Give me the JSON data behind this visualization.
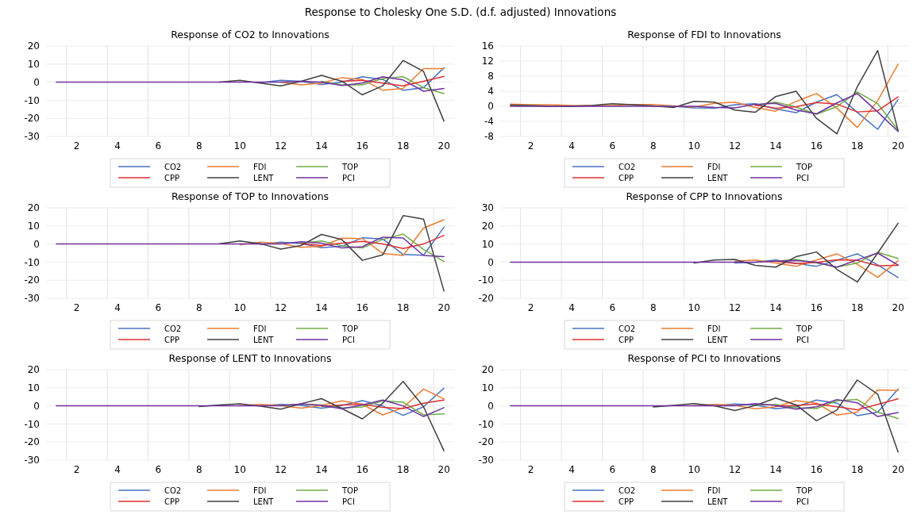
{
  "chart_data": [
    {
      "type": "line",
      "title": "Response of CO2 to Innovations",
      "annotations": [
        "Response to Cholesky One S.D. (d.f. adjusted) Innovations"
      ],
      "categories": [
        null,
        "2",
        null,
        "4",
        null,
        "6",
        null,
        "8",
        null,
        "10",
        null,
        "12",
        null,
        "14",
        null,
        "16",
        null,
        "18",
        null,
        "20"
      ],
      "ylim": [
        -30,
        20
      ],
      "yticks": [
        -30,
        -20,
        -10,
        0,
        10,
        20
      ],
      "grid": true,
      "legend": "bottom",
      "series": [
        {
          "name": "CO2",
          "color": "#4472c4",
          "values": [
            null,
            null,
            null,
            null,
            null,
            null,
            null,
            null,
            null,
            null,
            -0.3,
            1,
            0.5,
            -1.3,
            0,
            3,
            1.5,
            -4.5,
            -3,
            8
          ]
        },
        {
          "name": "FDI",
          "color": "#ed7d31",
          "values": [
            null,
            null,
            null,
            null,
            null,
            null,
            null,
            null,
            null,
            null,
            null,
            0,
            -1.5,
            -0.5,
            2.5,
            1.5,
            -4.5,
            -3.5,
            7.5,
            7.5
          ]
        },
        {
          "name": "TOP",
          "color": "#70ad47",
          "values": [
            null,
            null,
            null,
            null,
            null,
            null,
            null,
            null,
            null,
            null,
            null,
            null,
            null,
            0.5,
            -1.5,
            -1.5,
            2,
            3,
            -3,
            -6.3
          ]
        },
        {
          "name": "CPP",
          "color": "#e03030",
          "values": [
            null,
            null,
            null,
            null,
            null,
            null,
            null,
            null,
            null,
            null,
            null,
            null,
            null,
            null,
            0.5,
            1,
            -0.5,
            -2,
            0.5,
            3.2
          ]
        },
        {
          "name": "LENT",
          "color": "#404040",
          "values": [
            null,
            null,
            null,
            null,
            null,
            null,
            null,
            null,
            0,
            1,
            -0.5,
            -2,
            0.5,
            3.8,
            0.5,
            -7,
            -2,
            12,
            6,
            -21.5
          ]
        },
        {
          "name": "PCI",
          "color": "#7030a0",
          "values": [
            0,
            0,
            0,
            0,
            0,
            0,
            0,
            0,
            0,
            0,
            0,
            0,
            0.5,
            0,
            -1.8,
            -0.5,
            3,
            1.2,
            -5,
            -3.5
          ]
        }
      ]
    },
    {
      "type": "line",
      "title": "Response of FDI to Innovations",
      "categories": [
        null,
        "2",
        null,
        "4",
        null,
        "6",
        null,
        "8",
        null,
        "10",
        null,
        "12",
        null,
        "14",
        null,
        "16",
        null,
        "18",
        null,
        "20"
      ],
      "ylim": [
        -8,
        16
      ],
      "yticks": [
        -8,
        -4,
        0,
        4,
        8,
        12,
        16
      ],
      "grid": true,
      "legend": "bottom",
      "series": [
        {
          "name": "CO2",
          "color": "#4472c4",
          "values": [
            null,
            null,
            null,
            null,
            null,
            null,
            null,
            null,
            0,
            -0.4,
            -0.5,
            0.4,
            0.7,
            -0.7,
            -1.7,
            1.1,
            3.1,
            -1.6,
            -6.1,
            1.8
          ]
        },
        {
          "name": "FDI",
          "color": "#ed7d31",
          "values": [
            0.6,
            0.4,
            0.4,
            0.2,
            0.2,
            0.2,
            0.5,
            0.5,
            0.1,
            -0.2,
            0.8,
            1.1,
            -0.3,
            -1.3,
            1.3,
            3.4,
            -0.5,
            -5.6,
            1.5,
            11.2
          ]
        },
        {
          "name": "TOP",
          "color": "#70ad47",
          "values": [
            null,
            null,
            null,
            null,
            null,
            null,
            null,
            null,
            null,
            null,
            null,
            null,
            0.3,
            1.1,
            -0.2,
            -2.1,
            -0.1,
            3.8,
            0.7,
            -6.3
          ]
        },
        {
          "name": "CPP",
          "color": "#e03030",
          "values": [
            null,
            null,
            null,
            null,
            null,
            null,
            null,
            null,
            null,
            null,
            null,
            null,
            0.3,
            -0.5,
            -0.1,
            1,
            0.6,
            -1.5,
            -1.2,
            2.5
          ]
        },
        {
          "name": "LENT",
          "color": "#404040",
          "values": [
            0.3,
            0.2,
            0,
            0,
            0.2,
            0.7,
            0.4,
            0.1,
            -0.3,
            1.3,
            1.1,
            -1,
            -1.6,
            2.6,
            4,
            -3.2,
            -7.3,
            5.2,
            14.8,
            -6.5
          ]
        },
        {
          "name": "PCI",
          "color": "#7030a0",
          "values": [
            0,
            0,
            0,
            0,
            0,
            0,
            0,
            0,
            0,
            0,
            -0.3,
            -0.4,
            0.5,
            0.8,
            -1,
            -2,
            0.9,
            3.4,
            -1.5,
            -6.7
          ]
        }
      ]
    },
    {
      "type": "line",
      "title": "Response of TOP to Innovations",
      "categories": [
        null,
        "2",
        null,
        "4",
        null,
        "6",
        null,
        "8",
        null,
        "10",
        null,
        "12",
        null,
        "14",
        null,
        "16",
        null,
        "18",
        null,
        "20"
      ],
      "ylim": [
        -30,
        20
      ],
      "yticks": [
        -30,
        -20,
        -10,
        0,
        10,
        20
      ],
      "grid": true,
      "legend": "bottom",
      "series": [
        {
          "name": "CO2",
          "color": "#4472c4",
          "values": [
            null,
            null,
            null,
            null,
            null,
            null,
            null,
            null,
            null,
            null,
            -0.3,
            1,
            0.3,
            -2,
            -1.2,
            3.4,
            2.8,
            -5.8,
            -6.2,
            9.3
          ]
        },
        {
          "name": "FDI",
          "color": "#ed7d31",
          "values": [
            null,
            null,
            null,
            null,
            null,
            null,
            null,
            null,
            null,
            -0.4,
            1,
            0.3,
            -1.8,
            -1.3,
            3.2,
            3,
            -5.2,
            -6.3,
            8.8,
            13.4
          ]
        },
        {
          "name": "TOP",
          "color": "#70ad47",
          "values": [
            null,
            null,
            null,
            null,
            null,
            null,
            null,
            null,
            null,
            null,
            null,
            null,
            0.5,
            1.7,
            -1,
            -2.2,
            2.5,
            5.5,
            -3,
            -9.7
          ]
        },
        {
          "name": "CPP",
          "color": "#e03030",
          "values": [
            null,
            null,
            null,
            null,
            null,
            null,
            null,
            null,
            null,
            null,
            null,
            null,
            0.3,
            -0.8,
            0.5,
            1.5,
            0,
            -2.5,
            0,
            4.8
          ]
        },
        {
          "name": "LENT",
          "color": "#404040",
          "values": [
            null,
            null,
            null,
            null,
            null,
            null,
            null,
            null,
            0.2,
            1.7,
            0.2,
            -2.8,
            -0.8,
            5.3,
            2.5,
            -9,
            -6,
            15.7,
            13.8,
            -26
          ]
        },
        {
          "name": "PCI",
          "color": "#7030a0",
          "values": [
            0,
            0,
            0,
            0,
            0,
            0,
            0,
            0,
            0,
            0,
            0,
            0,
            1.3,
            0.5,
            -2.2,
            -1.5,
            3.8,
            3.3,
            -6.3,
            -7
          ]
        }
      ]
    },
    {
      "type": "line",
      "title": "Response of CPP to Innovations",
      "categories": [
        null,
        "2",
        null,
        "4",
        null,
        "6",
        null,
        "8",
        null,
        "10",
        null,
        "12",
        null,
        "14",
        null,
        "16",
        null,
        "18",
        null,
        "20"
      ],
      "ylim": [
        -20,
        30
      ],
      "yticks": [
        -20,
        -10,
        0,
        10,
        20,
        30
      ],
      "grid": true,
      "legend": "bottom",
      "series": [
        {
          "name": "CO2",
          "color": "#4472c4",
          "values": [
            null,
            null,
            null,
            null,
            null,
            null,
            null,
            null,
            null,
            null,
            null,
            -0.5,
            0,
            1.2,
            -0.7,
            -2.3,
            1,
            4.6,
            -1.5,
            -8.5
          ]
        },
        {
          "name": "FDI",
          "color": "#ed7d31",
          "values": [
            null,
            null,
            null,
            null,
            null,
            null,
            null,
            null,
            null,
            null,
            null,
            0.5,
            1.2,
            -0.5,
            -2.3,
            1.2,
            4.6,
            -1.2,
            -8.4,
            0.8
          ]
        },
        {
          "name": "TOP",
          "color": "#70ad47",
          "values": [
            null,
            null,
            null,
            null,
            null,
            null,
            null,
            null,
            null,
            null,
            null,
            null,
            null,
            0.5,
            1.5,
            -0.5,
            -2.8,
            -0.5,
            5.4,
            2
          ]
        },
        {
          "name": "CPP",
          "color": "#e03030",
          "values": [
            null,
            null,
            null,
            null,
            null,
            null,
            null,
            null,
            null,
            null,
            null,
            null,
            null,
            0.5,
            -0.8,
            -0.2,
            1.3,
            1,
            -2,
            -1.8
          ]
        },
        {
          "name": "LENT",
          "color": "#404040",
          "values": [
            null,
            null,
            null,
            null,
            null,
            null,
            null,
            null,
            null,
            -0.5,
            1.2,
            1.5,
            -1.8,
            -2.8,
            3,
            5.6,
            -4,
            -11,
            5,
            21.5
          ]
        },
        {
          "name": "PCI",
          "color": "#7030a0",
          "values": [
            0,
            0,
            0,
            0,
            0,
            0,
            0,
            0,
            0,
            0,
            0,
            0,
            0,
            0.5,
            0.8,
            0,
            -2.8,
            1.2,
            5,
            -1.6
          ]
        }
      ]
    },
    {
      "type": "line",
      "title": "Response of LENT to Innovations",
      "categories": [
        null,
        "2",
        null,
        "4",
        null,
        "6",
        null,
        "8",
        null,
        "10",
        null,
        "12",
        null,
        "14",
        null,
        "16",
        null,
        "18",
        null,
        "20"
      ],
      "ylim": [
        -30,
        20
      ],
      "yticks": [
        -30,
        -20,
        -10,
        0,
        10,
        20
      ],
      "grid": true,
      "legend": "bottom",
      "series": [
        {
          "name": "CO2",
          "color": "#4472c4",
          "values": [
            null,
            null,
            null,
            null,
            null,
            null,
            null,
            null,
            null,
            null,
            0,
            0.8,
            0.3,
            -1.3,
            0.2,
            2.9,
            0,
            -5.3,
            -0.5,
            9.8
          ]
        },
        {
          "name": "FDI",
          "color": "#ed7d31",
          "values": [
            null,
            null,
            null,
            null,
            null,
            null,
            null,
            null,
            null,
            0,
            0.8,
            0.2,
            -1.3,
            0.3,
            2.8,
            0.8,
            -5,
            -1,
            9.3,
            3.8
          ]
        },
        {
          "name": "TOP",
          "color": "#70ad47",
          "values": [
            null,
            null,
            null,
            null,
            null,
            null,
            null,
            null,
            null,
            null,
            null,
            0,
            1,
            0.5,
            -1.2,
            -0.6,
            2.8,
            2,
            -5,
            -4.5
          ]
        },
        {
          "name": "CPP",
          "color": "#e03030",
          "values": [
            null,
            null,
            null,
            null,
            null,
            null,
            null,
            null,
            null,
            null,
            null,
            null,
            null,
            -0.3,
            0.5,
            0.9,
            -0.8,
            -1.5,
            1.5,
            3.2
          ]
        },
        {
          "name": "LENT",
          "color": "#404040",
          "values": [
            null,
            null,
            null,
            null,
            null,
            null,
            null,
            -0.4,
            0.5,
            1.1,
            -0.2,
            -1.8,
            1.2,
            4,
            -1.5,
            -7.2,
            1.5,
            13.5,
            -0.5,
            -24.8
          ]
        },
        {
          "name": "PCI",
          "color": "#7030a0",
          "values": [
            0,
            0,
            0,
            0,
            0,
            0,
            0,
            0,
            0,
            0,
            0,
            0,
            1,
            0.3,
            -1.6,
            0.5,
            3.2,
            0,
            -5.9,
            -1
          ]
        }
      ]
    },
    {
      "type": "line",
      "title": "Response of PCI to Innovations",
      "categories": [
        null,
        "2",
        null,
        "4",
        null,
        "6",
        null,
        "8",
        null,
        "10",
        null,
        "12",
        null,
        "14",
        null,
        "16",
        null,
        "18",
        null,
        "20"
      ],
      "ylim": [
        -30,
        20
      ],
      "yticks": [
        -30,
        -20,
        -10,
        0,
        10,
        20
      ],
      "grid": true,
      "legend": "bottom",
      "series": [
        {
          "name": "CO2",
          "color": "#4472c4",
          "values": [
            null,
            null,
            null,
            null,
            null,
            null,
            null,
            null,
            null,
            null,
            0,
            1,
            0.5,
            -1.6,
            -0.5,
            3.2,
            1.5,
            -5.4,
            -3.5,
            9.3
          ]
        },
        {
          "name": "FDI",
          "color": "#ed7d31",
          "values": [
            null,
            null,
            null,
            null,
            null,
            null,
            null,
            null,
            null,
            0,
            0.8,
            0.3,
            -1.6,
            -0.5,
            2.9,
            1.5,
            -5.1,
            -3.5,
            8.8,
            8.5
          ]
        },
        {
          "name": "TOP",
          "color": "#70ad47",
          "values": [
            null,
            null,
            null,
            null,
            null,
            null,
            null,
            null,
            null,
            null,
            null,
            null,
            0.5,
            0.7,
            -1,
            -1.5,
            2.8,
            3.5,
            -3.5,
            -7
          ]
        },
        {
          "name": "CPP",
          "color": "#e03030",
          "values": [
            null,
            null,
            null,
            null,
            null,
            null,
            null,
            null,
            null,
            null,
            null,
            null,
            null,
            -0.2,
            0.3,
            1,
            -0.5,
            -2.2,
            0.8,
            3.9
          ]
        },
        {
          "name": "LENT",
          "color": "#404040",
          "values": [
            null,
            null,
            null,
            null,
            null,
            null,
            null,
            -0.6,
            0.3,
            1.2,
            0,
            -2.6,
            0.2,
            4.3,
            0.5,
            -8.2,
            -2.3,
            14.3,
            6.5,
            -25.5
          ]
        },
        {
          "name": "PCI",
          "color": "#7030a0",
          "values": [
            0,
            0,
            0,
            0,
            0,
            0,
            0,
            0,
            0,
            0,
            0,
            0,
            1.2,
            0.3,
            -1.8,
            -0.5,
            3.5,
            1.7,
            -5.9,
            -3.7
          ]
        }
      ]
    }
  ]
}
